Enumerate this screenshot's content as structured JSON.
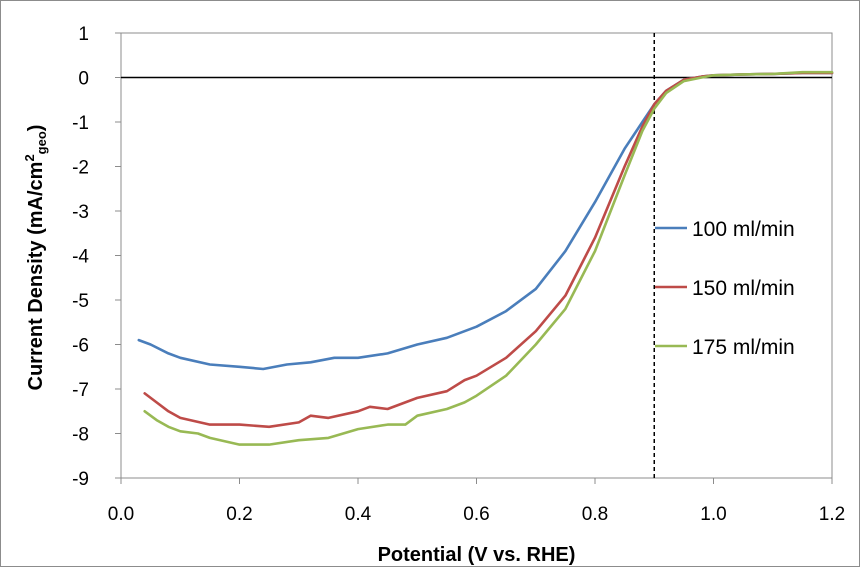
{
  "chart_data": {
    "type": "line",
    "title": "",
    "xlabel": "Potential (V vs. RHE)",
    "ylabel": {
      "main": "Current Density  (mA/cm",
      "sup": "2",
      "sub": "geo",
      "close": ")"
    },
    "xlim": [
      0.0,
      1.2
    ],
    "ylim": [
      -9,
      1
    ],
    "xticks": [
      "0.0",
      "0.2",
      "0.4",
      "0.6",
      "0.8",
      "1.0",
      "1.2"
    ],
    "yticks": [
      "1",
      "0",
      "-1",
      "-2",
      "-3",
      "-4",
      "-5",
      "-6",
      "-7",
      "-8",
      "-9"
    ],
    "grid": false,
    "legend_position": "right",
    "reference_lines": {
      "vertical_x": 0.9,
      "horizontal_y": 0
    },
    "series": [
      {
        "name": "100 ml/min",
        "color": "#4a7ebb",
        "x": [
          0.03,
          0.05,
          0.08,
          0.1,
          0.15,
          0.2,
          0.24,
          0.28,
          0.32,
          0.36,
          0.4,
          0.45,
          0.5,
          0.55,
          0.6,
          0.65,
          0.7,
          0.75,
          0.8,
          0.85,
          0.88,
          0.9,
          0.92,
          0.95,
          0.98,
          1.0,
          1.05,
          1.1,
          1.15,
          1.2
        ],
        "y": [
          -5.9,
          -6.0,
          -6.2,
          -6.3,
          -6.45,
          -6.5,
          -6.55,
          -6.45,
          -6.4,
          -6.3,
          -6.3,
          -6.2,
          -6.0,
          -5.85,
          -5.6,
          -5.25,
          -4.75,
          -3.9,
          -2.8,
          -1.6,
          -1.0,
          -0.6,
          -0.3,
          -0.05,
          0.02,
          0.05,
          0.07,
          0.08,
          0.1,
          0.1
        ]
      },
      {
        "name": "150 ml/min",
        "color": "#be4b48",
        "x": [
          0.04,
          0.06,
          0.08,
          0.1,
          0.15,
          0.2,
          0.25,
          0.3,
          0.32,
          0.35,
          0.4,
          0.42,
          0.45,
          0.5,
          0.55,
          0.58,
          0.6,
          0.65,
          0.7,
          0.75,
          0.8,
          0.85,
          0.88,
          0.9,
          0.92,
          0.95,
          0.98,
          1.0,
          1.05,
          1.1,
          1.15,
          1.2
        ],
        "y": [
          -7.1,
          -7.3,
          -7.5,
          -7.65,
          -7.8,
          -7.8,
          -7.85,
          -7.75,
          -7.6,
          -7.65,
          -7.5,
          -7.4,
          -7.45,
          -7.2,
          -7.05,
          -6.8,
          -6.7,
          -6.3,
          -5.7,
          -4.9,
          -3.6,
          -2.0,
          -1.1,
          -0.6,
          -0.3,
          -0.05,
          0.02,
          0.05,
          0.07,
          0.08,
          0.1,
          0.1
        ]
      },
      {
        "name": "175 ml/min",
        "color": "#98b954",
        "x": [
          0.04,
          0.06,
          0.08,
          0.1,
          0.13,
          0.15,
          0.2,
          0.25,
          0.3,
          0.35,
          0.4,
          0.45,
          0.48,
          0.5,
          0.55,
          0.58,
          0.6,
          0.65,
          0.7,
          0.75,
          0.8,
          0.85,
          0.88,
          0.9,
          0.92,
          0.95,
          0.98,
          1.0,
          1.05,
          1.1,
          1.15,
          1.2
        ],
        "y": [
          -7.5,
          -7.7,
          -7.85,
          -7.95,
          -8.0,
          -8.1,
          -8.25,
          -8.25,
          -8.15,
          -8.1,
          -7.9,
          -7.8,
          -7.8,
          -7.6,
          -7.45,
          -7.3,
          -7.15,
          -6.7,
          -6.0,
          -5.2,
          -3.9,
          -2.2,
          -1.2,
          -0.7,
          -0.35,
          -0.08,
          0.0,
          0.05,
          0.07,
          0.08,
          0.12,
          0.12
        ]
      }
    ]
  }
}
